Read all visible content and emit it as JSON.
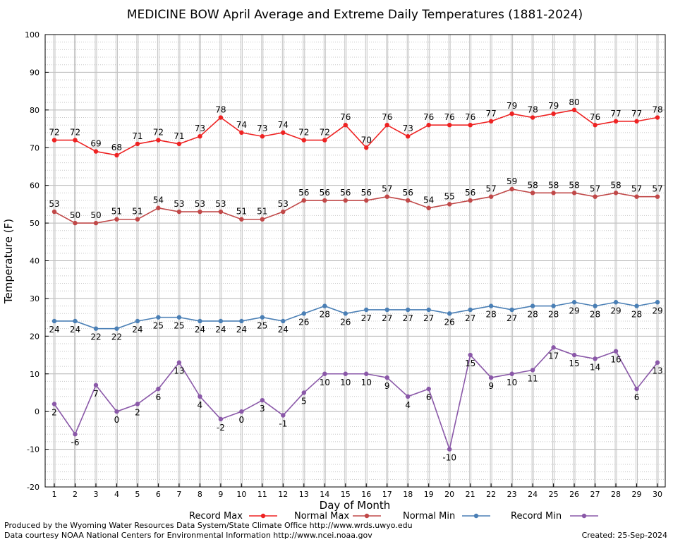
{
  "chart_data": {
    "type": "line",
    "title": "MEDICINE BOW April Average and Extreme Daily Temperatures (1881-2024)",
    "xlabel": "Day of Month",
    "ylabel": "Temperature (F)",
    "ylim": [
      -20,
      100
    ],
    "xlim": [
      1,
      30
    ],
    "yticks": [
      -20,
      -10,
      0,
      10,
      20,
      30,
      40,
      50,
      60,
      70,
      80,
      90,
      100
    ],
    "x": [
      1,
      2,
      3,
      4,
      5,
      6,
      7,
      8,
      9,
      10,
      11,
      12,
      13,
      14,
      15,
      16,
      17,
      18,
      19,
      20,
      21,
      22,
      23,
      24,
      25,
      26,
      27,
      28,
      29,
      30
    ],
    "grid": true,
    "legend_position": "bottom",
    "series": [
      {
        "name": "Record Max",
        "color": "#ee2222",
        "label_pos": "above",
        "values": [
          72,
          72,
          69,
          68,
          71,
          72,
          71,
          73,
          78,
          74,
          73,
          74,
          72,
          72,
          76,
          70,
          76,
          73,
          76,
          76,
          76,
          77,
          79,
          78,
          79,
          80,
          76,
          77,
          77,
          78
        ]
      },
      {
        "name": "Normal Max",
        "color": "#c04848",
        "label_pos": "above",
        "values": [
          53,
          50,
          50,
          51,
          51,
          54,
          53,
          53,
          53,
          51,
          51,
          53,
          56,
          56,
          56,
          56,
          57,
          56,
          54,
          55,
          56,
          57,
          59,
          58,
          58,
          58,
          57,
          58,
          57,
          57
        ]
      },
      {
        "name": "Normal Min",
        "color": "#4a7fb5",
        "label_pos": "below",
        "values": [
          24,
          24,
          22,
          22,
          24,
          25,
          25,
          24,
          24,
          24,
          25,
          24,
          26,
          28,
          26,
          27,
          27,
          27,
          27,
          26,
          27,
          28,
          27,
          28,
          28,
          29,
          28,
          29,
          28,
          29
        ]
      },
      {
        "name": "Record Min",
        "color": "#8a58a8",
        "label_pos": "below",
        "values": [
          2,
          -6,
          7,
          0,
          2,
          6,
          13,
          4,
          -2,
          0,
          3,
          -1,
          5,
          10,
          10,
          10,
          9,
          4,
          6,
          -10,
          15,
          9,
          10,
          11,
          17,
          15,
          14,
          16,
          6,
          13
        ]
      }
    ]
  },
  "footer": {
    "left_line1": "Produced by the Wyoming Water Resources Data System/State Climate Office http://www.wrds.uwyo.edu",
    "left_line2": "Data courtesy NOAA National Centers for Environmental Information http://www.ncei.noaa.gov",
    "created": "Created:  25-Sep-2024"
  }
}
